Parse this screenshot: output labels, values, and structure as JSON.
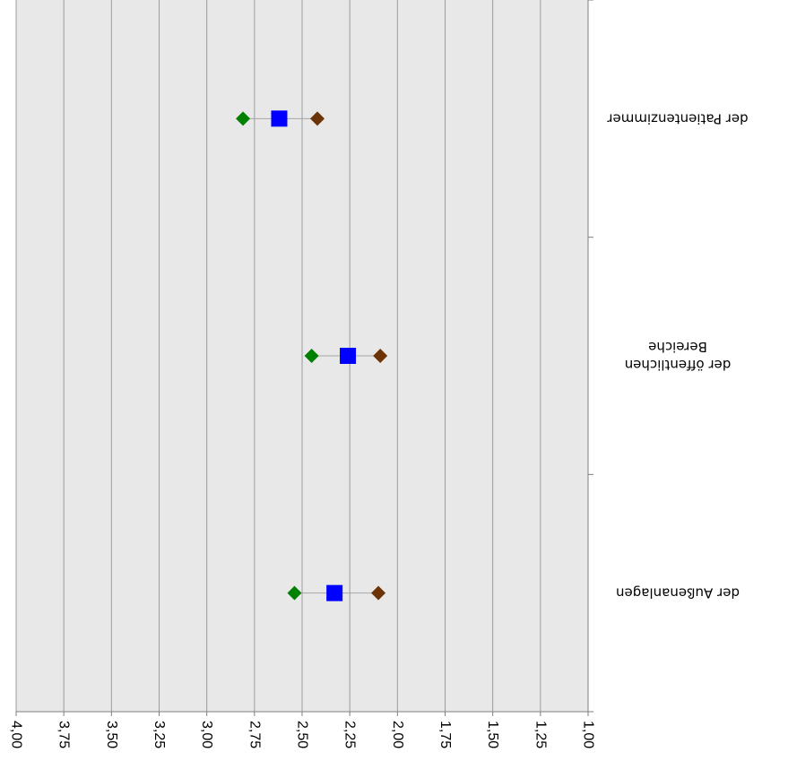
{
  "chart_data": {
    "type": "scatter",
    "orientation": "horizontal-dot-range",
    "xlim": [
      1.0,
      4.0
    ],
    "x_reversed": true,
    "grid": true,
    "x_ticks": [
      "1,00",
      "1,25",
      "1,50",
      "1,75",
      "2,00",
      "2,25",
      "2,50",
      "2,75",
      "3,00",
      "3,25",
      "3,50",
      "3,75",
      "4,00"
    ],
    "x_tick_values": [
      1.0,
      1.25,
      1.5,
      1.75,
      2.0,
      2.25,
      2.5,
      2.75,
      3.0,
      3.25,
      3.5,
      3.75,
      4.0
    ],
    "categories": [
      [
        "der Außenanlagen"
      ],
      [
        "der öffentlichen",
        "Bereiche"
      ],
      [
        "der Patientenzimmer"
      ]
    ],
    "series": [
      {
        "marker": "diamond",
        "color": "#008000",
        "values": [
          2.54,
          2.45,
          2.81
        ]
      },
      {
        "marker": "square",
        "color": "#0000FF",
        "values": [
          2.33,
          2.26,
          2.62
        ]
      },
      {
        "marker": "diamond",
        "color": "#6B3306",
        "values": [
          2.1,
          2.09,
          2.42
        ]
      }
    ],
    "plot_background": "#E8E8E8",
    "gridline_color": "#9C9C9C",
    "range_line_color": "#A6A6A6"
  }
}
